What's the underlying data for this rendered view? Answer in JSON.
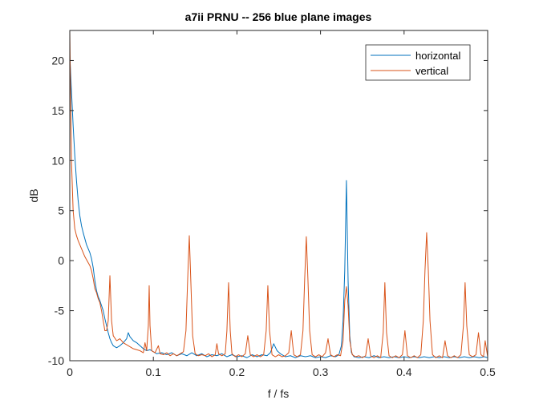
{
  "chart_data": {
    "type": "line",
    "title": "a7ii PRNU -- 256 blue plane images",
    "xlabel": "f / fs",
    "ylabel": "dB",
    "xlim": [
      0,
      0.5
    ],
    "ylim": [
      -10,
      23
    ],
    "xticks": [
      0,
      0.1,
      0.2,
      0.3,
      0.4,
      0.5
    ],
    "xtick_labels": [
      "0",
      "0.1",
      "0.2",
      "0.3",
      "0.4",
      "0.5"
    ],
    "yticks": [
      -10,
      -5,
      0,
      5,
      10,
      15,
      20
    ],
    "ytick_labels": [
      "-10",
      "-5",
      "0",
      "5",
      "10",
      "15",
      "20"
    ],
    "grid": false,
    "legend_position": "top-right",
    "series": [
      {
        "name": "horizontal",
        "color": "#0072BD",
        "points": [
          [
            0.0,
            20.5
          ],
          [
            0.002,
            17
          ],
          [
            0.004,
            13.5
          ],
          [
            0.006,
            10.5
          ],
          [
            0.008,
            8
          ],
          [
            0.01,
            6
          ],
          [
            0.012,
            4.5
          ],
          [
            0.014,
            3.5
          ],
          [
            0.016,
            2.8
          ],
          [
            0.018,
            2.2
          ],
          [
            0.02,
            1.6
          ],
          [
            0.022,
            1.2
          ],
          [
            0.024,
            0.8
          ],
          [
            0.026,
            0.2
          ],
          [
            0.028,
            -0.7
          ],
          [
            0.03,
            -2
          ],
          [
            0.032,
            -3
          ],
          [
            0.034,
            -3.6
          ],
          [
            0.036,
            -4
          ],
          [
            0.038,
            -4.5
          ],
          [
            0.04,
            -5
          ],
          [
            0.042,
            -5.8
          ],
          [
            0.044,
            -6.5
          ],
          [
            0.046,
            -7.2
          ],
          [
            0.048,
            -7.8
          ],
          [
            0.05,
            -8.2
          ],
          [
            0.052,
            -8.5
          ],
          [
            0.056,
            -8.7
          ],
          [
            0.06,
            -8.5
          ],
          [
            0.064,
            -8.2
          ],
          [
            0.068,
            -7.8
          ],
          [
            0.07,
            -7.2
          ],
          [
            0.072,
            -7.6
          ],
          [
            0.076,
            -8
          ],
          [
            0.08,
            -8.2
          ],
          [
            0.084,
            -8.5
          ],
          [
            0.088,
            -8.8
          ],
          [
            0.092,
            -9.0
          ],
          [
            0.096,
            -8.9
          ],
          [
            0.1,
            -9.1
          ],
          [
            0.104,
            -9.3
          ],
          [
            0.11,
            -9.2
          ],
          [
            0.116,
            -9.4
          ],
          [
            0.122,
            -9.2
          ],
          [
            0.128,
            -9.5
          ],
          [
            0.134,
            -9.3
          ],
          [
            0.14,
            -9.5
          ],
          [
            0.146,
            -9.2
          ],
          [
            0.152,
            -9.5
          ],
          [
            0.158,
            -9.3
          ],
          [
            0.164,
            -9.6
          ],
          [
            0.17,
            -9.4
          ],
          [
            0.176,
            -9.5
          ],
          [
            0.182,
            -9.3
          ],
          [
            0.188,
            -9.6
          ],
          [
            0.194,
            -9.4
          ],
          [
            0.2,
            -9.6
          ],
          [
            0.206,
            -9.5
          ],
          [
            0.212,
            -9.7
          ],
          [
            0.218,
            -9.4
          ],
          [
            0.224,
            -9.6
          ],
          [
            0.23,
            -9.4
          ],
          [
            0.236,
            -9.5
          ],
          [
            0.24,
            -9.2
          ],
          [
            0.244,
            -8.3
          ],
          [
            0.248,
            -9.0
          ],
          [
            0.252,
            -9.3
          ],
          [
            0.258,
            -9.6
          ],
          [
            0.264,
            -9.5
          ],
          [
            0.27,
            -9.7
          ],
          [
            0.276,
            -9.5
          ],
          [
            0.282,
            -9.6
          ],
          [
            0.288,
            -9.5
          ],
          [
            0.294,
            -9.7
          ],
          [
            0.3,
            -9.6
          ],
          [
            0.306,
            -9.7
          ],
          [
            0.312,
            -9.5
          ],
          [
            0.318,
            -9.6
          ],
          [
            0.322,
            -9.4
          ],
          [
            0.325,
            -8.5
          ],
          [
            0.327,
            -6
          ],
          [
            0.329,
            -1
          ],
          [
            0.331,
            8.0
          ],
          [
            0.333,
            -2
          ],
          [
            0.335,
            -7.5
          ],
          [
            0.337,
            -9.2
          ],
          [
            0.34,
            -9.6
          ],
          [
            0.346,
            -9.7
          ],
          [
            0.352,
            -9.6
          ],
          [
            0.358,
            -9.7
          ],
          [
            0.364,
            -9.5
          ],
          [
            0.37,
            -9.7
          ],
          [
            0.376,
            -9.6
          ],
          [
            0.382,
            -9.7
          ],
          [
            0.388,
            -9.6
          ],
          [
            0.394,
            -9.7
          ],
          [
            0.4,
            -9.6
          ],
          [
            0.406,
            -9.7
          ],
          [
            0.412,
            -9.6
          ],
          [
            0.418,
            -9.7
          ],
          [
            0.424,
            -9.6
          ],
          [
            0.43,
            -9.7
          ],
          [
            0.436,
            -9.6
          ],
          [
            0.442,
            -9.7
          ],
          [
            0.448,
            -9.6
          ],
          [
            0.454,
            -9.7
          ],
          [
            0.46,
            -9.6
          ],
          [
            0.466,
            -9.7
          ],
          [
            0.472,
            -9.6
          ],
          [
            0.478,
            -9.7
          ],
          [
            0.484,
            -9.6
          ],
          [
            0.49,
            -9.7
          ],
          [
            0.496,
            -9.6
          ],
          [
            0.5,
            -9.7
          ]
        ]
      },
      {
        "name": "vertical",
        "color": "#D95319",
        "points": [
          [
            0.0,
            23
          ],
          [
            0.002,
            10
          ],
          [
            0.004,
            5
          ],
          [
            0.006,
            3.2
          ],
          [
            0.008,
            2.5
          ],
          [
            0.01,
            2.0
          ],
          [
            0.012,
            1.6
          ],
          [
            0.014,
            1.2
          ],
          [
            0.016,
            0.8
          ],
          [
            0.018,
            0.4
          ],
          [
            0.02,
            0.1
          ],
          [
            0.022,
            -0.2
          ],
          [
            0.024,
            -0.5
          ],
          [
            0.026,
            -1.0
          ],
          [
            0.028,
            -1.8
          ],
          [
            0.03,
            -2.8
          ],
          [
            0.032,
            -3.2
          ],
          [
            0.034,
            -3.8
          ],
          [
            0.036,
            -4.2
          ],
          [
            0.038,
            -5.0
          ],
          [
            0.04,
            -6.0
          ],
          [
            0.042,
            -7.0
          ],
          [
            0.044,
            -7.0
          ],
          [
            0.046,
            -6.0
          ],
          [
            0.048,
            -1.5
          ],
          [
            0.05,
            -6.0
          ],
          [
            0.052,
            -7.5
          ],
          [
            0.056,
            -8.0
          ],
          [
            0.06,
            -7.8
          ],
          [
            0.064,
            -8.2
          ],
          [
            0.068,
            -8.4
          ],
          [
            0.072,
            -8.6
          ],
          [
            0.076,
            -8.8
          ],
          [
            0.08,
            -8.9
          ],
          [
            0.084,
            -9.0
          ],
          [
            0.088,
            -9.2
          ],
          [
            0.09,
            -8.2
          ],
          [
            0.092,
            -9.0
          ],
          [
            0.094,
            -6.5
          ],
          [
            0.095,
            -2.5
          ],
          [
            0.096,
            -6.5
          ],
          [
            0.098,
            -9.0
          ],
          [
            0.102,
            -9.2
          ],
          [
            0.106,
            -8.5
          ],
          [
            0.108,
            -9.3
          ],
          [
            0.112,
            -9.4
          ],
          [
            0.116,
            -9.2
          ],
          [
            0.12,
            -9.5
          ],
          [
            0.124,
            -9.3
          ],
          [
            0.128,
            -9.5
          ],
          [
            0.132,
            -9.3
          ],
          [
            0.136,
            -9.1
          ],
          [
            0.139,
            -7.0
          ],
          [
            0.141,
            -2.0
          ],
          [
            0.143,
            2.5
          ],
          [
            0.145,
            -2.5
          ],
          [
            0.147,
            -7.5
          ],
          [
            0.15,
            -9.3
          ],
          [
            0.154,
            -9.5
          ],
          [
            0.158,
            -9.4
          ],
          [
            0.162,
            -9.5
          ],
          [
            0.166,
            -9.3
          ],
          [
            0.17,
            -9.6
          ],
          [
            0.174,
            -9.4
          ],
          [
            0.176,
            -8.3
          ],
          [
            0.178,
            -9.3
          ],
          [
            0.182,
            -9.5
          ],
          [
            0.186,
            -9.3
          ],
          [
            0.188,
            -7.0
          ],
          [
            0.19,
            -2.2
          ],
          [
            0.192,
            -7.0
          ],
          [
            0.194,
            -9.3
          ],
          [
            0.198,
            -9.6
          ],
          [
            0.202,
            -9.4
          ],
          [
            0.206,
            -9.6
          ],
          [
            0.21,
            -9.3
          ],
          [
            0.213,
            -7.5
          ],
          [
            0.216,
            -9.4
          ],
          [
            0.22,
            -9.6
          ],
          [
            0.224,
            -9.4
          ],
          [
            0.228,
            -9.6
          ],
          [
            0.232,
            -9.4
          ],
          [
            0.235,
            -7.0
          ],
          [
            0.237,
            -2.5
          ],
          [
            0.239,
            -7.0
          ],
          [
            0.242,
            -9.4
          ],
          [
            0.246,
            -9.6
          ],
          [
            0.25,
            -9.4
          ],
          [
            0.254,
            -9.6
          ],
          [
            0.258,
            -9.5
          ],
          [
            0.262,
            -9.2
          ],
          [
            0.265,
            -7.0
          ],
          [
            0.268,
            -9.4
          ],
          [
            0.272,
            -9.6
          ],
          [
            0.276,
            -9.4
          ],
          [
            0.279,
            -7.0
          ],
          [
            0.281,
            -2.0
          ],
          [
            0.283,
            2.4
          ],
          [
            0.285,
            -2.0
          ],
          [
            0.287,
            -7.0
          ],
          [
            0.29,
            -9.4
          ],
          [
            0.294,
            -9.6
          ],
          [
            0.298,
            -9.4
          ],
          [
            0.302,
            -9.6
          ],
          [
            0.306,
            -9.2
          ],
          [
            0.309,
            -7.8
          ],
          [
            0.312,
            -9.4
          ],
          [
            0.316,
            -9.6
          ],
          [
            0.32,
            -9.4
          ],
          [
            0.324,
            -9.5
          ],
          [
            0.327,
            -8.0
          ],
          [
            0.329,
            -4.0
          ],
          [
            0.331,
            -2.6
          ],
          [
            0.333,
            -4.5
          ],
          [
            0.335,
            -8.0
          ],
          [
            0.338,
            -9.4
          ],
          [
            0.342,
            -9.6
          ],
          [
            0.346,
            -9.5
          ],
          [
            0.35,
            -9.7
          ],
          [
            0.354,
            -9.5
          ],
          [
            0.357,
            -7.8
          ],
          [
            0.36,
            -9.5
          ],
          [
            0.364,
            -9.7
          ],
          [
            0.368,
            -9.5
          ],
          [
            0.372,
            -9.7
          ],
          [
            0.375,
            -7.2
          ],
          [
            0.377,
            -2.2
          ],
          [
            0.379,
            -7.2
          ],
          [
            0.382,
            -9.5
          ],
          [
            0.386,
            -9.7
          ],
          [
            0.39,
            -9.5
          ],
          [
            0.394,
            -9.7
          ],
          [
            0.398,
            -9.4
          ],
          [
            0.401,
            -7.0
          ],
          [
            0.404,
            -9.5
          ],
          [
            0.408,
            -9.7
          ],
          [
            0.412,
            -9.5
          ],
          [
            0.416,
            -9.7
          ],
          [
            0.42,
            -9.4
          ],
          [
            0.423,
            -6.0
          ],
          [
            0.425,
            -1.0
          ],
          [
            0.427,
            2.8
          ],
          [
            0.429,
            -1.0
          ],
          [
            0.431,
            -6.0
          ],
          [
            0.434,
            -9.4
          ],
          [
            0.438,
            -9.7
          ],
          [
            0.442,
            -9.5
          ],
          [
            0.446,
            -9.7
          ],
          [
            0.449,
            -8.0
          ],
          [
            0.452,
            -9.5
          ],
          [
            0.456,
            -9.7
          ],
          [
            0.46,
            -9.5
          ],
          [
            0.464,
            -9.7
          ],
          [
            0.468,
            -9.4
          ],
          [
            0.471,
            -6.5
          ],
          [
            0.473,
            -2.2
          ],
          [
            0.475,
            -6.5
          ],
          [
            0.478,
            -9.4
          ],
          [
            0.482,
            -9.6
          ],
          [
            0.486,
            -9.4
          ],
          [
            0.489,
            -7.2
          ],
          [
            0.492,
            -9.4
          ],
          [
            0.495,
            -9.6
          ],
          [
            0.497,
            -8.0
          ],
          [
            0.5,
            -9.6
          ]
        ]
      }
    ]
  }
}
